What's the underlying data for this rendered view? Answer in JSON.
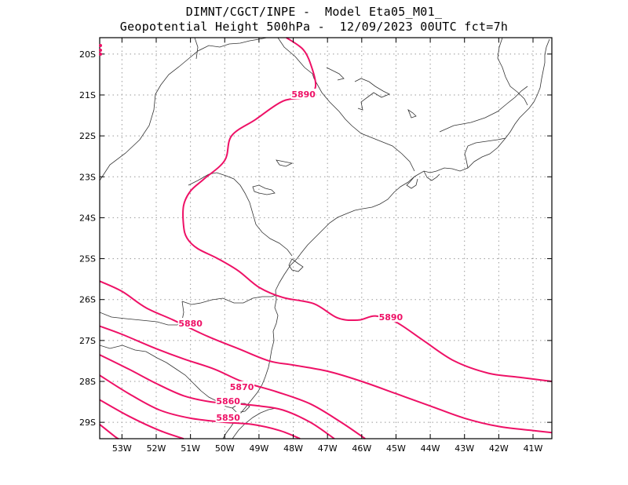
{
  "title": {
    "line1": "DIMNT/CGCT/INPE -  Model Eta05_M01_",
    "line2": "Geopotential Height 500hPa -  12/09/2023 00UTC fct=7h"
  },
  "map": {
    "lon_range": [
      -53.65,
      -40.45
    ],
    "lat_range": [
      -29.4,
      -19.6
    ],
    "lat_ticks": [
      {
        "value": -20,
        "label": "20S"
      },
      {
        "value": -21,
        "label": "21S"
      },
      {
        "value": -22,
        "label": "22S"
      },
      {
        "value": -23,
        "label": "23S"
      },
      {
        "value": -24,
        "label": "24S"
      },
      {
        "value": -25,
        "label": "25S"
      },
      {
        "value": -26,
        "label": "26S"
      },
      {
        "value": -27,
        "label": "27S"
      },
      {
        "value": -28,
        "label": "28S"
      },
      {
        "value": -29,
        "label": "29S"
      }
    ],
    "lon_ticks": [
      {
        "value": -53,
        "label": "53W"
      },
      {
        "value": -52,
        "label": "52W"
      },
      {
        "value": -51,
        "label": "51W"
      },
      {
        "value": -50,
        "label": "50W"
      },
      {
        "value": -49,
        "label": "49W"
      },
      {
        "value": -48,
        "label": "48W"
      },
      {
        "value": -47,
        "label": "47W"
      },
      {
        "value": -46,
        "label": "46W"
      },
      {
        "value": -45,
        "label": "45W"
      },
      {
        "value": -44,
        "label": "44W"
      },
      {
        "value": -43,
        "label": "43W"
      },
      {
        "value": -42,
        "label": "42W"
      },
      {
        "value": -41,
        "label": "41W"
      }
    ],
    "contour_color": "#ee1166",
    "contours": [
      {
        "level": "5890",
        "label": "5890",
        "points": [
          [
            -48.2,
            -19.6
          ],
          [
            -47.7,
            -19.9
          ],
          [
            -47.45,
            -20.35
          ],
          [
            -47.35,
            -20.8
          ],
          [
            -47.6,
            -21.05
          ],
          [
            -48.3,
            -21.15
          ],
          [
            -49.1,
            -21.6
          ],
          [
            -49.8,
            -22.0
          ],
          [
            -50.0,
            -22.6
          ],
          [
            -50.6,
            -23.05
          ],
          [
            -51.0,
            -23.35
          ],
          [
            -51.2,
            -23.7
          ],
          [
            -51.2,
            -24.2
          ],
          [
            -51.1,
            -24.5
          ],
          [
            -50.8,
            -24.75
          ],
          [
            -50.2,
            -25.0
          ],
          [
            -49.6,
            -25.3
          ],
          [
            -49.0,
            -25.7
          ],
          [
            -48.3,
            -25.95
          ],
          [
            -47.4,
            -26.1
          ],
          [
            -46.7,
            -26.45
          ],
          [
            -46.1,
            -26.5
          ],
          [
            -45.6,
            -26.4
          ],
          [
            -45.0,
            -26.55
          ],
          [
            -44.2,
            -27.0
          ],
          [
            -43.3,
            -27.5
          ],
          [
            -42.3,
            -27.8
          ],
          [
            -41.4,
            -27.9
          ],
          [
            -40.45,
            -28.0
          ]
        ],
        "label_pos": [
          -47.7,
          -21.0
        ],
        "label2_pos": [
          -45.15,
          -26.45
        ]
      },
      {
        "level": "5880",
        "label": "5880",
        "points": [
          [
            -53.65,
            -25.55
          ],
          [
            -53.0,
            -25.8
          ],
          [
            -52.3,
            -26.2
          ],
          [
            -51.5,
            -26.5
          ],
          [
            -50.5,
            -26.9
          ],
          [
            -49.6,
            -27.2
          ],
          [
            -48.7,
            -27.5
          ],
          [
            -48.0,
            -27.6
          ],
          [
            -47.0,
            -27.75
          ],
          [
            -46.0,
            -28.0
          ],
          [
            -45.0,
            -28.3
          ],
          [
            -44.0,
            -28.6
          ],
          [
            -43.0,
            -28.9
          ],
          [
            -42.0,
            -29.1
          ],
          [
            -41.0,
            -29.2
          ],
          [
            -40.45,
            -29.25
          ]
        ],
        "label_pos": [
          -51.0,
          -26.6
        ]
      },
      {
        "level": "5870",
        "label": "5870",
        "points": [
          [
            -53.65,
            -26.65
          ],
          [
            -53.0,
            -26.85
          ],
          [
            -52.0,
            -27.2
          ],
          [
            -51.2,
            -27.45
          ],
          [
            -50.3,
            -27.7
          ],
          [
            -49.5,
            -28.0
          ],
          [
            -48.5,
            -28.25
          ],
          [
            -47.5,
            -28.55
          ],
          [
            -46.6,
            -29.0
          ],
          [
            -45.9,
            -29.4
          ]
        ],
        "label_pos": [
          -49.5,
          -28.15
        ]
      },
      {
        "level": "5860",
        "label": "5860",
        "points": [
          [
            -53.65,
            -27.35
          ],
          [
            -52.8,
            -27.7
          ],
          [
            -52.0,
            -28.05
          ],
          [
            -51.2,
            -28.35
          ],
          [
            -50.4,
            -28.5
          ],
          [
            -49.6,
            -28.55
          ],
          [
            -49.0,
            -28.6
          ],
          [
            -48.3,
            -28.7
          ],
          [
            -47.5,
            -29.0
          ],
          [
            -46.8,
            -29.4
          ]
        ],
        "label_pos": [
          -49.9,
          -28.5
        ]
      },
      {
        "level": "5850",
        "label": "5850",
        "points": [
          [
            -53.65,
            -27.85
          ],
          [
            -52.8,
            -28.3
          ],
          [
            -51.9,
            -28.7
          ],
          [
            -51.0,
            -28.9
          ],
          [
            -50.0,
            -29.0
          ],
          [
            -49.2,
            -29.05
          ],
          [
            -48.4,
            -29.2
          ],
          [
            -47.8,
            -29.4
          ]
        ],
        "label_pos": [
          -49.9,
          -28.9
        ]
      },
      {
        "level": "5840",
        "label": "",
        "points": [
          [
            -53.65,
            -28.45
          ],
          [
            -52.8,
            -28.85
          ],
          [
            -51.9,
            -29.2
          ],
          [
            -51.2,
            -29.4
          ]
        ],
        "label_pos": null
      },
      {
        "level": "5830",
        "label": "",
        "points": [
          [
            -53.65,
            -29.05
          ],
          [
            -53.2,
            -29.35
          ],
          [
            -53.1,
            -29.4
          ]
        ],
        "label_pos": null
      }
    ]
  }
}
